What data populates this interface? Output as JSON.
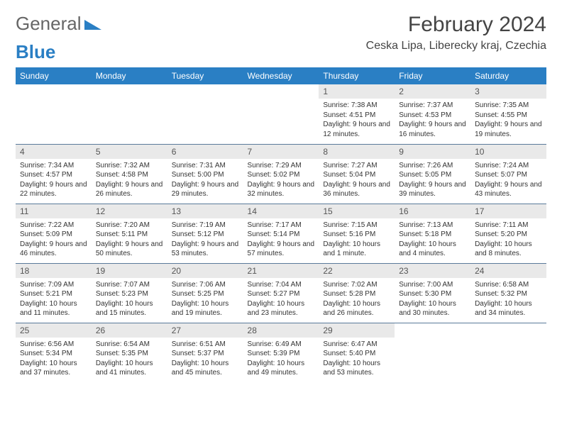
{
  "logo": {
    "text1": "General",
    "text2": "Blue",
    "color1": "#666666",
    "color2": "#2a7fc4"
  },
  "title": "February 2024",
  "location": "Ceska Lipa, Liberecky kraj, Czechia",
  "header_bg": "#2a7fc4",
  "daynum_bg": "#e9e9e9",
  "days_of_week": [
    "Sunday",
    "Monday",
    "Tuesday",
    "Wednesday",
    "Thursday",
    "Friday",
    "Saturday"
  ],
  "weeks": [
    [
      null,
      null,
      null,
      null,
      {
        "n": "1",
        "sunrise": "7:38 AM",
        "sunset": "4:51 PM",
        "daylight": "9 hours and 12 minutes."
      },
      {
        "n": "2",
        "sunrise": "7:37 AM",
        "sunset": "4:53 PM",
        "daylight": "9 hours and 16 minutes."
      },
      {
        "n": "3",
        "sunrise": "7:35 AM",
        "sunset": "4:55 PM",
        "daylight": "9 hours and 19 minutes."
      }
    ],
    [
      {
        "n": "4",
        "sunrise": "7:34 AM",
        "sunset": "4:57 PM",
        "daylight": "9 hours and 22 minutes."
      },
      {
        "n": "5",
        "sunrise": "7:32 AM",
        "sunset": "4:58 PM",
        "daylight": "9 hours and 26 minutes."
      },
      {
        "n": "6",
        "sunrise": "7:31 AM",
        "sunset": "5:00 PM",
        "daylight": "9 hours and 29 minutes."
      },
      {
        "n": "7",
        "sunrise": "7:29 AM",
        "sunset": "5:02 PM",
        "daylight": "9 hours and 32 minutes."
      },
      {
        "n": "8",
        "sunrise": "7:27 AM",
        "sunset": "5:04 PM",
        "daylight": "9 hours and 36 minutes."
      },
      {
        "n": "9",
        "sunrise": "7:26 AM",
        "sunset": "5:05 PM",
        "daylight": "9 hours and 39 minutes."
      },
      {
        "n": "10",
        "sunrise": "7:24 AM",
        "sunset": "5:07 PM",
        "daylight": "9 hours and 43 minutes."
      }
    ],
    [
      {
        "n": "11",
        "sunrise": "7:22 AM",
        "sunset": "5:09 PM",
        "daylight": "9 hours and 46 minutes."
      },
      {
        "n": "12",
        "sunrise": "7:20 AM",
        "sunset": "5:11 PM",
        "daylight": "9 hours and 50 minutes."
      },
      {
        "n": "13",
        "sunrise": "7:19 AM",
        "sunset": "5:12 PM",
        "daylight": "9 hours and 53 minutes."
      },
      {
        "n": "14",
        "sunrise": "7:17 AM",
        "sunset": "5:14 PM",
        "daylight": "9 hours and 57 minutes."
      },
      {
        "n": "15",
        "sunrise": "7:15 AM",
        "sunset": "5:16 PM",
        "daylight": "10 hours and 1 minute."
      },
      {
        "n": "16",
        "sunrise": "7:13 AM",
        "sunset": "5:18 PM",
        "daylight": "10 hours and 4 minutes."
      },
      {
        "n": "17",
        "sunrise": "7:11 AM",
        "sunset": "5:20 PM",
        "daylight": "10 hours and 8 minutes."
      }
    ],
    [
      {
        "n": "18",
        "sunrise": "7:09 AM",
        "sunset": "5:21 PM",
        "daylight": "10 hours and 11 minutes."
      },
      {
        "n": "19",
        "sunrise": "7:07 AM",
        "sunset": "5:23 PM",
        "daylight": "10 hours and 15 minutes."
      },
      {
        "n": "20",
        "sunrise": "7:06 AM",
        "sunset": "5:25 PM",
        "daylight": "10 hours and 19 minutes."
      },
      {
        "n": "21",
        "sunrise": "7:04 AM",
        "sunset": "5:27 PM",
        "daylight": "10 hours and 23 minutes."
      },
      {
        "n": "22",
        "sunrise": "7:02 AM",
        "sunset": "5:28 PM",
        "daylight": "10 hours and 26 minutes."
      },
      {
        "n": "23",
        "sunrise": "7:00 AM",
        "sunset": "5:30 PM",
        "daylight": "10 hours and 30 minutes."
      },
      {
        "n": "24",
        "sunrise": "6:58 AM",
        "sunset": "5:32 PM",
        "daylight": "10 hours and 34 minutes."
      }
    ],
    [
      {
        "n": "25",
        "sunrise": "6:56 AM",
        "sunset": "5:34 PM",
        "daylight": "10 hours and 37 minutes."
      },
      {
        "n": "26",
        "sunrise": "6:54 AM",
        "sunset": "5:35 PM",
        "daylight": "10 hours and 41 minutes."
      },
      {
        "n": "27",
        "sunrise": "6:51 AM",
        "sunset": "5:37 PM",
        "daylight": "10 hours and 45 minutes."
      },
      {
        "n": "28",
        "sunrise": "6:49 AM",
        "sunset": "5:39 PM",
        "daylight": "10 hours and 49 minutes."
      },
      {
        "n": "29",
        "sunrise": "6:47 AM",
        "sunset": "5:40 PM",
        "daylight": "10 hours and 53 minutes."
      },
      null,
      null
    ]
  ],
  "labels": {
    "sunrise": "Sunrise:",
    "sunset": "Sunset:",
    "daylight": "Daylight:"
  }
}
